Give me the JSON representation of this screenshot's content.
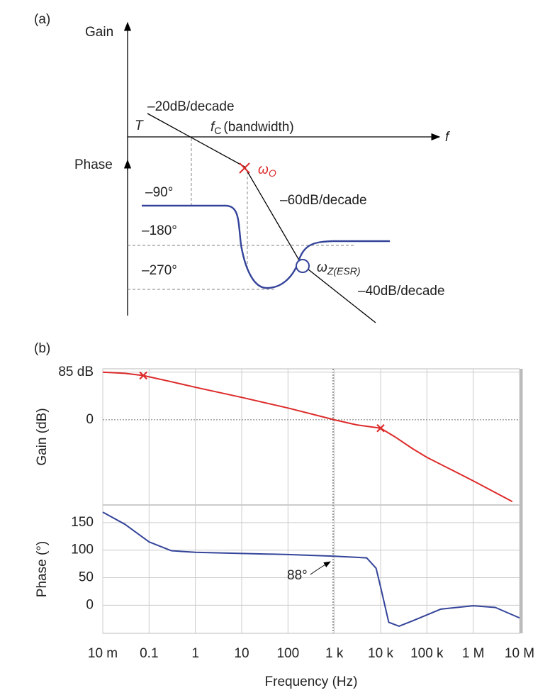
{
  "panel_a": {
    "label": "(a)",
    "gain": "Gain",
    "phase": "Phase",
    "t": "T",
    "f": "f",
    "fc": {
      "main": "f",
      "sub": "C",
      "rest": "(bandwidth)"
    },
    "omega_o": {
      "main": "ω",
      "sub": "O"
    },
    "omega_z": {
      "main": "ω",
      "sub": "Z(ESR)"
    },
    "slope_20": "–20dB/decade",
    "slope_60": "–60dB/decade",
    "slope_40": "–40dB/decade",
    "deg_90": "–90°",
    "deg_180": "–180°",
    "deg_270": "–270°"
  },
  "panel_b_label": "(b)",
  "chart_data": [
    {
      "type": "line",
      "ylabel": "Gain (dB)",
      "xscale": "log",
      "color": "#dd2a2a",
      "xlim": [
        0.01,
        10000000
      ],
      "ylim": [
        -152,
        91
      ],
      "yticks": [
        {
          "value": 85,
          "label": "85 dB"
        },
        0
      ],
      "x": [
        0.01,
        0.03,
        0.075,
        0.3,
        1,
        10,
        100,
        1000,
        3000,
        10000,
        20000,
        50000,
        100000,
        1000000,
        7000000
      ],
      "values": [
        85,
        83,
        79,
        68,
        58,
        40,
        21,
        0,
        -9,
        -15,
        -30,
        -52,
        -67,
        -109,
        -146
      ],
      "markers": {
        "x": [
          0.075,
          10000
        ],
        "values": [
          79,
          -15
        ]
      }
    },
    {
      "type": "line",
      "ylabel": "Phase (°)",
      "xlabel": "Frequency (Hz)",
      "xscale": "log",
      "color": "#34449a",
      "xlim": [
        0.01,
        10000000
      ],
      "ylim": [
        -51,
        182
      ],
      "yticks": [
        0,
        50,
        100,
        150
      ],
      "xticks": [
        {
          "value": 0.01,
          "label": "10 m"
        },
        0.1,
        1,
        10,
        100,
        {
          "value": 1000,
          "label": "1 k"
        },
        {
          "value": 10000,
          "label": "10 k"
        },
        {
          "value": 100000,
          "label": "100 k"
        },
        {
          "value": 1000000,
          "label": "1 M"
        },
        {
          "value": 10000000,
          "label": "10 M"
        }
      ],
      "x": [
        0.01,
        0.03,
        0.1,
        0.3,
        1,
        10,
        100,
        1000,
        5000,
        8000,
        10000,
        15000,
        25000,
        50000,
        200000,
        1000000,
        3000000,
        10000000
      ],
      "values": [
        169,
        147,
        115,
        99,
        96,
        94,
        92,
        89,
        86,
        67,
        33,
        -31,
        -38,
        -28,
        -7,
        -1,
        -4,
        -23
      ],
      "annotation": "88°"
    }
  ]
}
